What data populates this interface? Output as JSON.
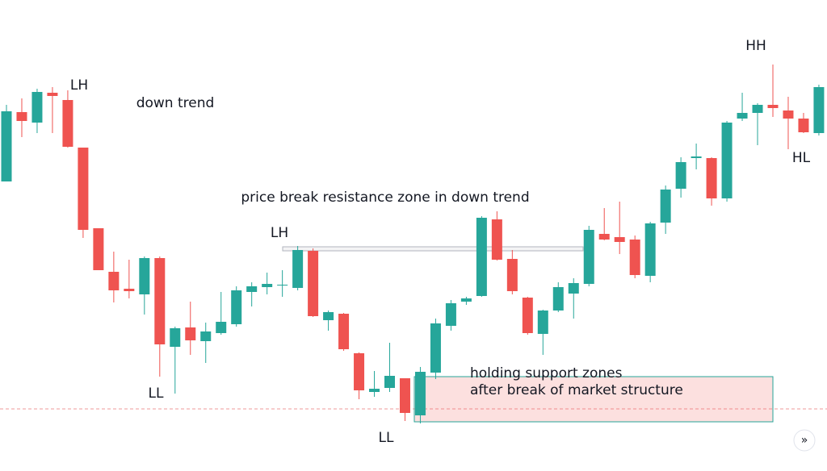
{
  "chart_data": {
    "type": "candlestick",
    "up_color": "#26a69a",
    "down_color": "#ef5350",
    "ylim": [
      0,
      584
    ],
    "open": [
      359,
      445,
      432,
      469,
      460,
      401,
      301,
      247,
      226,
      219,
      264,
      154,
      178,
      161,
      171,
      182,
      222,
      228,
      230,
      227,
      273,
      187,
      195,
      146,
      98,
      103,
      115,
      69,
      122,
      180,
      210,
      217,
      312,
      263,
      215,
      170,
      199,
      220,
      232,
      294,
      290,
      287,
      242,
      308,
      350,
      388,
      388,
      338,
      437,
      444,
      454,
      447,
      437,
      419
    ],
    "high": [
      454,
      462,
      474,
      476,
      472,
      401,
      301,
      272,
      262,
      266,
      266,
      179,
      210,
      184,
      222,
      229,
      234,
      246,
      249,
      279,
      276,
      199,
      196,
      147,
      124,
      159,
      115,
      129,
      189,
      212,
      216,
      316,
      322,
      274,
      216,
      200,
      234,
      239,
      304,
      326,
      334,
      292,
      309,
      354,
      389,
      406,
      389,
      434,
      469,
      456,
      504,
      464,
      444,
      479
    ],
    "low": [
      359,
      414,
      419,
      419,
      401,
      289,
      249,
      209,
      214,
      194,
      117,
      96,
      144,
      134,
      169,
      179,
      204,
      219,
      216,
      224,
      191,
      174,
      149,
      89,
      92,
      98,
      62,
      59,
      114,
      174,
      206,
      216,
      261,
      219,
      169,
      144,
      197,
      189,
      229,
      286,
      269,
      239,
      234,
      294,
      339,
      374,
      329,
      334,
      434,
      404,
      439,
      399,
      419,
      416
    ],
    "close": [
      446,
      434,
      470,
      465,
      402,
      299,
      249,
      224,
      223,
      264,
      157,
      177,
      162,
      173,
      185,
      224,
      229,
      232,
      231,
      274,
      192,
      197,
      151,
      100,
      102,
      118,
      72,
      123,
      183,
      208,
      214,
      314,
      262,
      223,
      171,
      199,
      228,
      233,
      299,
      287,
      284,
      243,
      307,
      349,
      383,
      390,
      338,
      432,
      444,
      454,
      450,
      437,
      420,
      476
    ],
    "reference_line": {
      "value": 77,
      "color": "#ef9a9a"
    },
    "zones": [
      {
        "low": 273,
        "high": 278,
        "color": "#b2b5be"
      },
      {
        "low": 61,
        "high": 117,
        "color": "#ef5350"
      }
    ],
    "annotations": [
      {
        "text": "LH"
      },
      {
        "text": "down trend",
        "color": "#ef5350"
      },
      {
        "text": "LH"
      },
      {
        "text": "price break resistance zone in down trend"
      },
      {
        "text": "LL"
      },
      {
        "text": "LL"
      },
      {
        "text": "holding support zones"
      },
      {
        "text": "after break of market structure"
      },
      {
        "text": "HH"
      },
      {
        "text": "HL"
      }
    ]
  },
  "ui": {
    "scroll_button": "»"
  }
}
